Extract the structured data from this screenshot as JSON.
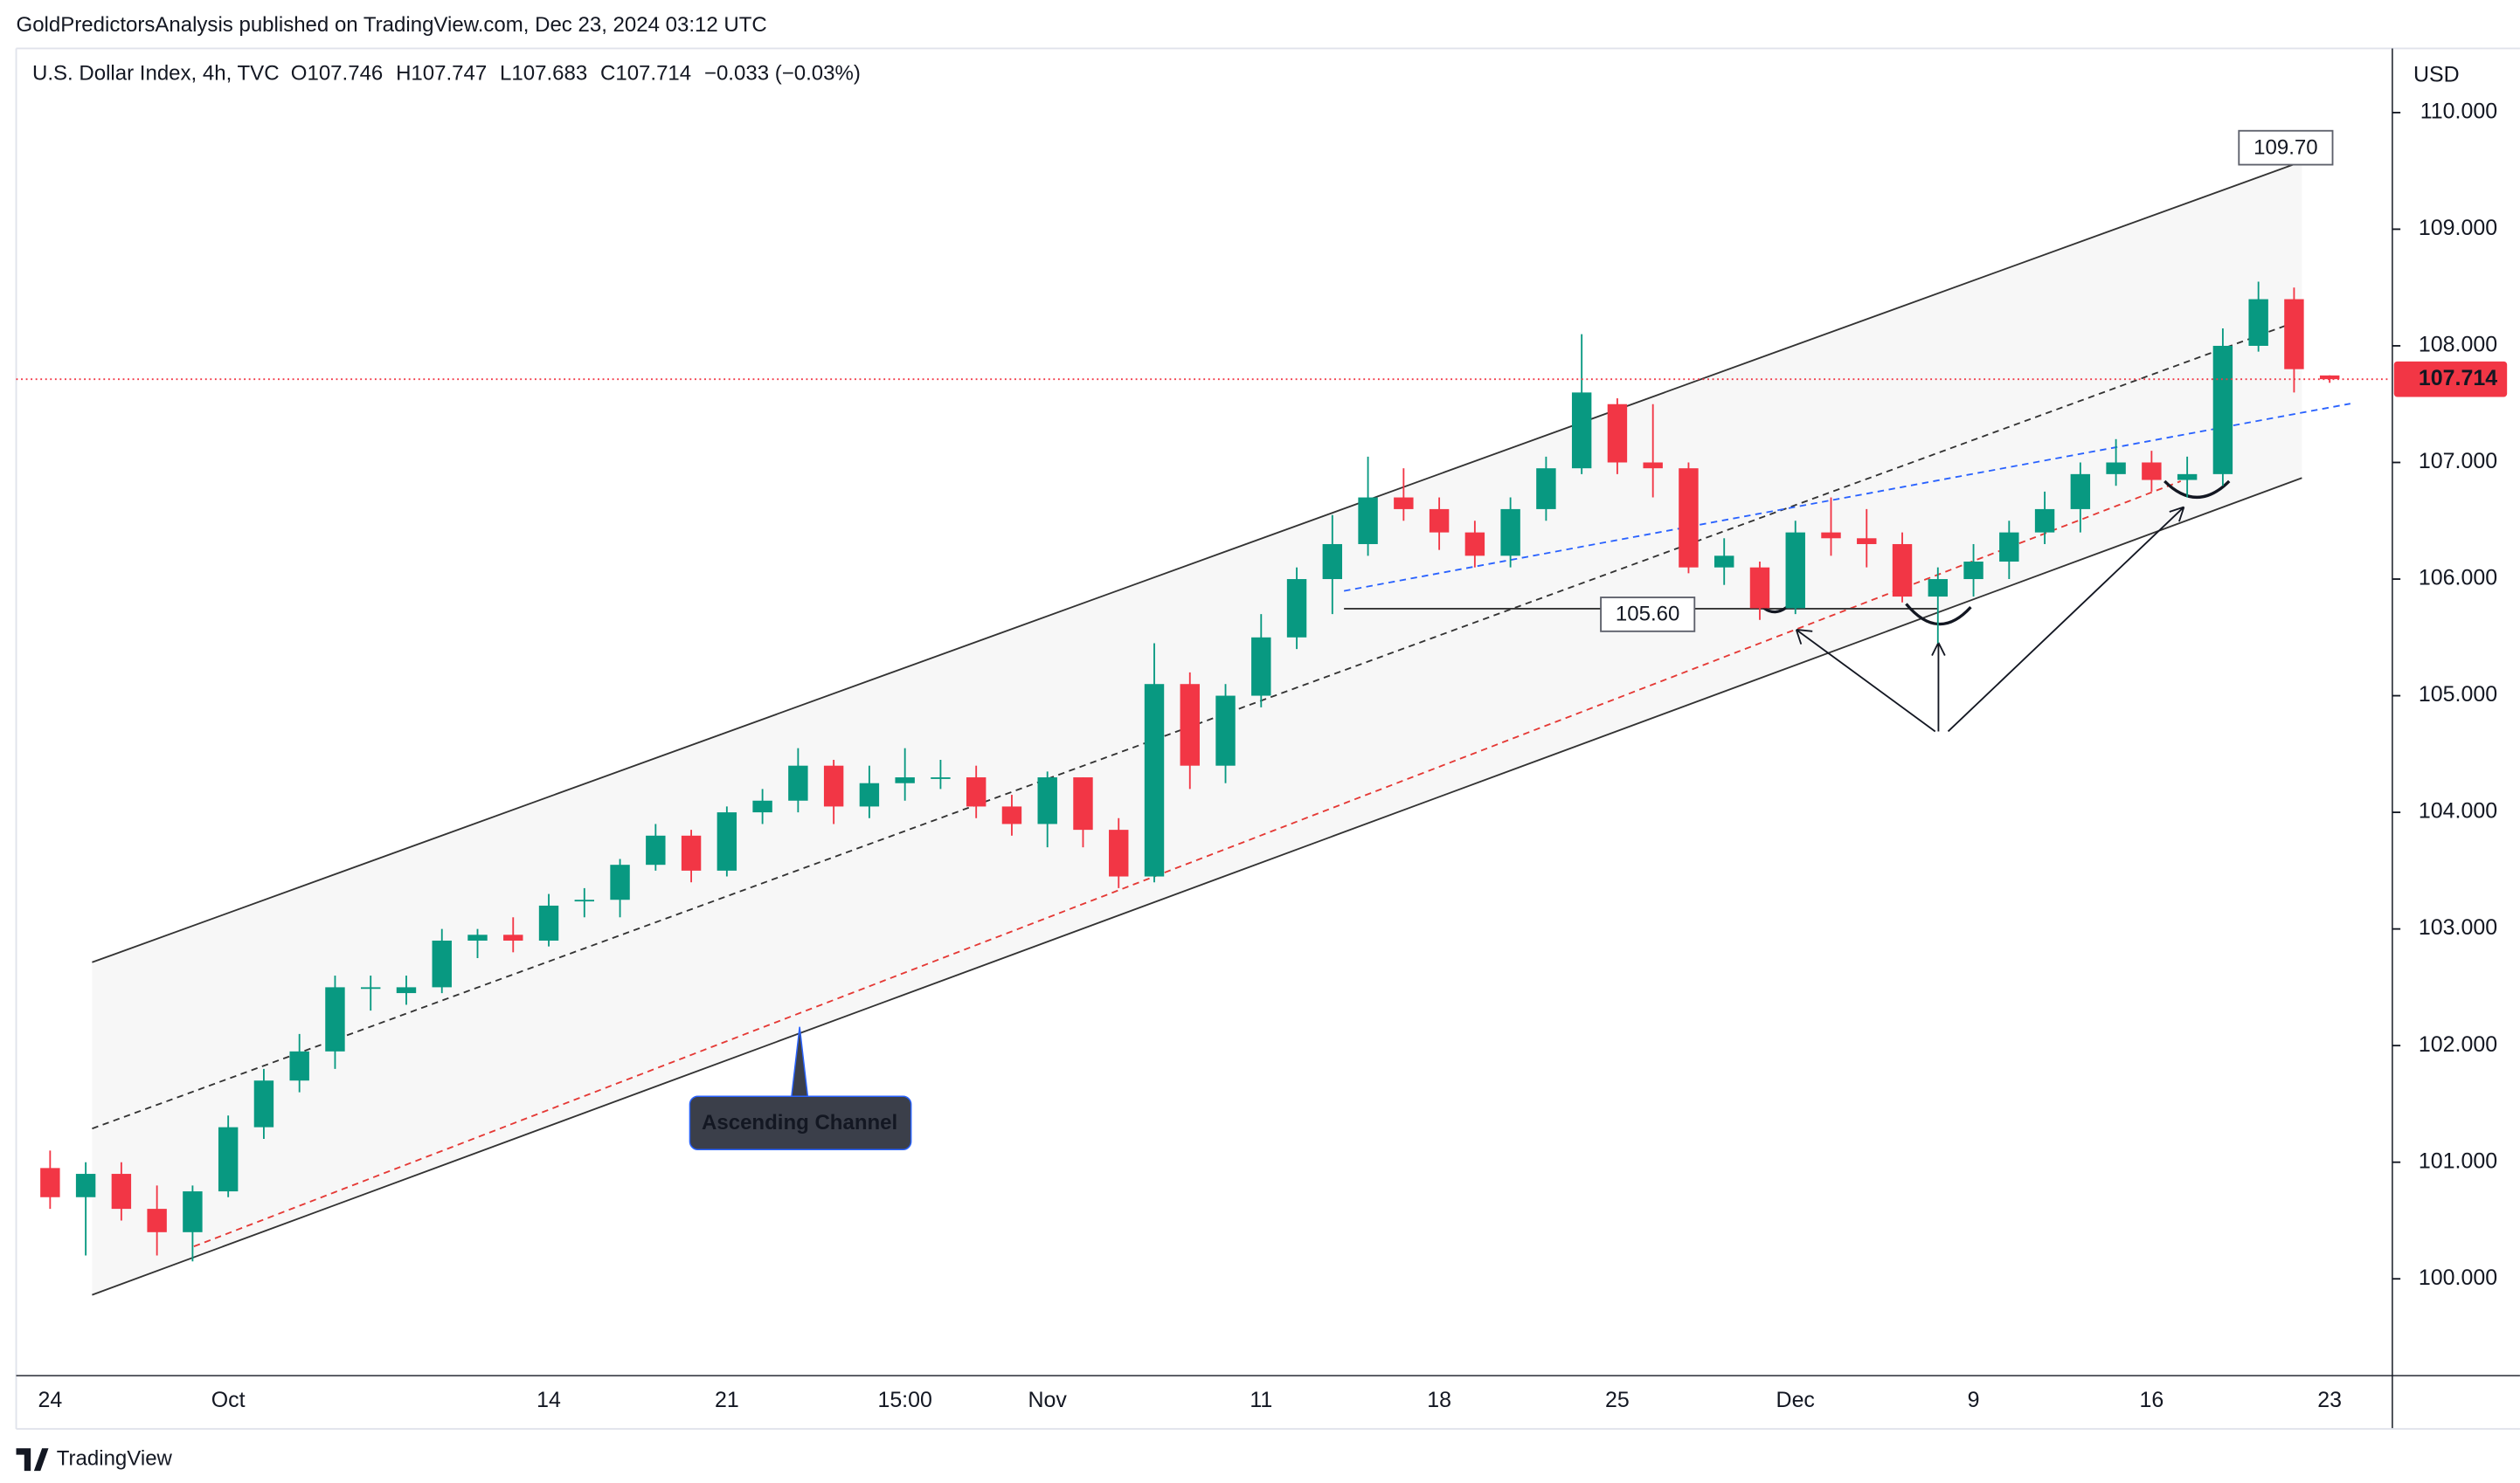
{
  "chart_data": {
    "type": "candlestick",
    "publisher": "GoldPredictorsAnalysis published on TradingView.com, Dec 23, 2024 03:12 UTC",
    "symbol": "U.S. Dollar Index, 4h, TVC",
    "ohlc_header": [
      "O107.746",
      "H107.747",
      "L107.683",
      "C107.714",
      "−0.033 (−0.03%)"
    ],
    "currency": "USD",
    "brand": "TradingView",
    "annotations": [
      "109.70",
      "105.60",
      "Ascending Channel"
    ],
    "categories": [
      "24",
      null,
      null,
      null,
      null,
      "Oct",
      null,
      null,
      null,
      null,
      null,
      null,
      null,
      null,
      "14",
      null,
      null,
      null,
      null,
      "21",
      null,
      null,
      null,
      null,
      "15:00",
      null,
      null,
      null,
      "Nov",
      null,
      null,
      null,
      null,
      null,
      "11",
      null,
      null,
      null,
      null,
      "18",
      null,
      null,
      null,
      null,
      "25",
      null,
      null,
      null,
      null,
      "Dec",
      null,
      null,
      null,
      null,
      "9",
      null,
      null,
      null,
      null,
      "16",
      null,
      null,
      null,
      null,
      "23"
    ],
    "open": [
      100.95,
      100.7,
      100.9,
      100.6,
      100.4,
      100.75,
      101.3,
      101.7,
      101.95,
      102.5,
      102.45,
      102.5,
      102.9,
      102.95,
      102.9,
      103.25,
      103.25,
      103.55,
      103.8,
      103.5,
      104.0,
      104.1,
      104.4,
      104.05,
      104.25,
      104.3,
      104.3,
      104.05,
      103.9,
      104.3,
      103.85,
      103.45,
      105.1,
      104.4,
      105.0,
      105.5,
      106.0,
      106.3,
      106.7,
      106.6,
      106.4,
      106.2,
      106.6,
      106.95,
      107.5,
      107.0,
      106.95,
      106.1,
      106.1,
      105.75,
      106.4,
      106.35,
      106.3,
      105.85,
      106.0,
      106.15,
      106.4,
      106.6,
      106.9,
      107.0,
      106.85,
      106.9,
      108.0,
      108.4,
      107.746
    ],
    "high": [
      101.1,
      101.0,
      101.0,
      100.8,
      100.8,
      101.4,
      101.8,
      102.1,
      102.6,
      102.6,
      102.6,
      103.0,
      103.0,
      103.1,
      103.3,
      103.35,
      103.6,
      103.9,
      103.85,
      104.05,
      104.2,
      104.55,
      104.45,
      104.4,
      104.55,
      104.45,
      104.4,
      104.15,
      104.35,
      104.3,
      103.95,
      105.45,
      105.2,
      105.1,
      105.7,
      106.1,
      106.55,
      107.05,
      106.95,
      106.7,
      106.5,
      106.7,
      107.05,
      108.1,
      107.55,
      107.5,
      107.0,
      106.35,
      106.15,
      106.5,
      106.7,
      106.6,
      106.4,
      106.1,
      106.3,
      106.5,
      106.75,
      107.0,
      107.2,
      107.1,
      107.05,
      108.15,
      108.55,
      108.5,
      107.747
    ],
    "low": [
      100.6,
      100.2,
      100.5,
      100.2,
      100.15,
      100.7,
      101.2,
      101.6,
      101.8,
      102.3,
      102.35,
      102.45,
      102.75,
      102.8,
      102.85,
      103.1,
      103.1,
      103.5,
      103.4,
      103.45,
      103.9,
      104.0,
      103.9,
      103.95,
      104.1,
      104.2,
      103.95,
      103.8,
      103.7,
      103.7,
      103.35,
      103.4,
      104.2,
      104.25,
      104.9,
      105.4,
      105.7,
      106.2,
      106.5,
      106.25,
      106.1,
      106.1,
      106.5,
      106.9,
      106.9,
      106.7,
      106.05,
      105.95,
      105.65,
      105.7,
      106.2,
      106.1,
      105.8,
      105.45,
      105.85,
      106.0,
      106.3,
      106.4,
      106.8,
      106.75,
      106.7,
      106.8,
      107.95,
      107.6,
      107.683
    ],
    "close": [
      100.7,
      100.9,
      100.6,
      100.4,
      100.75,
      101.3,
      101.7,
      101.95,
      102.5,
      102.5,
      102.5,
      102.9,
      102.95,
      102.9,
      103.2,
      103.25,
      103.55,
      103.8,
      103.5,
      104.0,
      104.1,
      104.4,
      104.05,
      104.25,
      104.3,
      104.3,
      104.05,
      103.9,
      104.3,
      103.85,
      103.45,
      105.1,
      104.4,
      105.0,
      105.5,
      106.0,
      106.3,
      106.7,
      106.6,
      106.4,
      106.2,
      106.6,
      106.95,
      107.6,
      107.0,
      106.95,
      106.1,
      106.2,
      105.75,
      106.4,
      106.35,
      106.3,
      105.85,
      106.0,
      106.15,
      106.4,
      106.6,
      106.9,
      107.0,
      106.85,
      106.9,
      108.0,
      108.4,
      107.8,
      107.714
    ],
    "up_color": "#089981",
    "down_color": "#f23645",
    "last_price": 107.714,
    "last_price_color": "#f23645",
    "ylim": [
      99.17,
      110.55
    ],
    "yticks": [
      {
        "value": 100,
        "label": "100.000"
      },
      {
        "value": 101,
        "label": "101.000"
      },
      {
        "value": 102,
        "label": "102.000"
      },
      {
        "value": 103,
        "label": "103.000"
      },
      {
        "value": 104,
        "label": "104.000"
      },
      {
        "value": 105,
        "label": "105.000"
      },
      {
        "value": 106,
        "label": "106.000"
      },
      {
        "value": 107,
        "label": "107.000"
      },
      {
        "value": 108,
        "label": "108.000"
      },
      {
        "value": 109,
        "label": "109.000"
      },
      {
        "value": 110,
        "label": "110.000"
      }
    ],
    "grid": false
  }
}
